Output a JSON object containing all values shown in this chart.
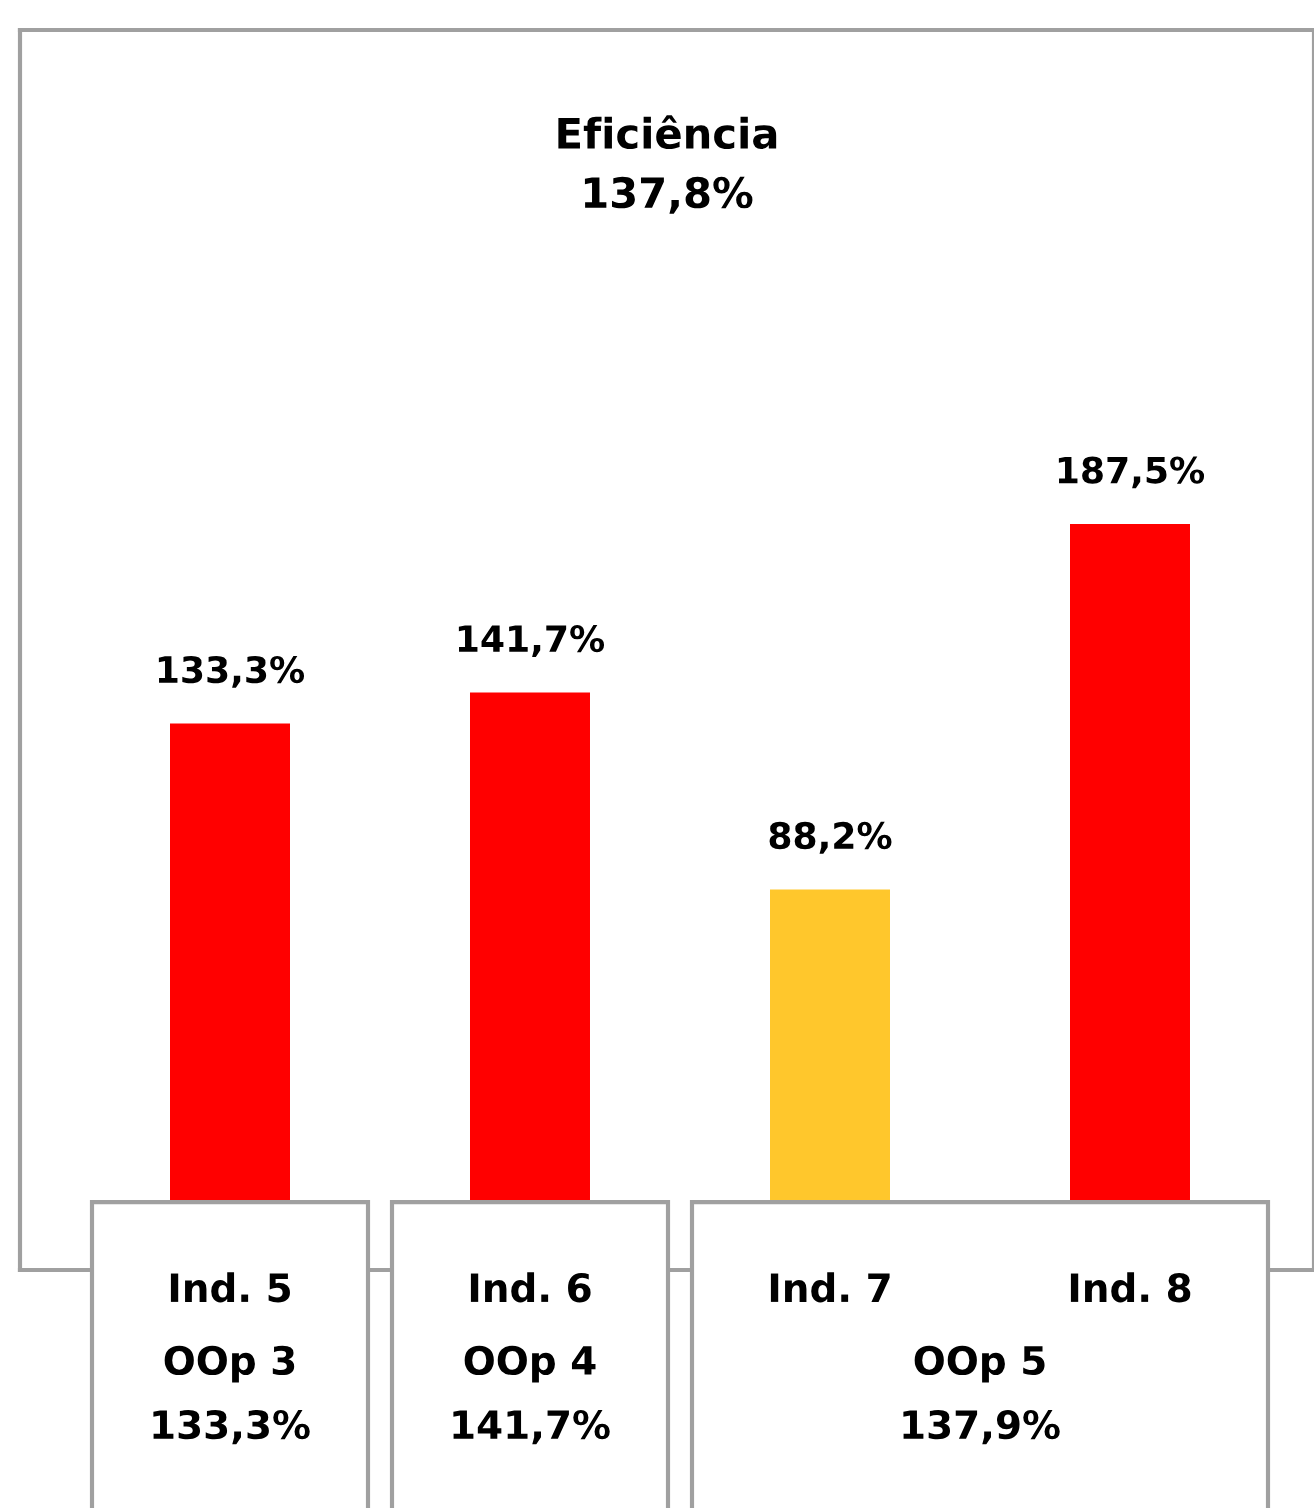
{
  "chart_data": {
    "type": "bar",
    "title": "Eficiência\n137,8%",
    "categories": [
      "Ind. 5",
      "Ind. 6",
      "Ind. 7",
      "Ind. 8"
    ],
    "values": [
      133.3,
      141.7,
      88.2,
      187.5
    ],
    "colors": [
      "#ff0000",
      "#ff0000",
      "#ffc72c",
      "#ff0000"
    ],
    "value_labels": [
      "133,3%",
      "141,7%",
      "88,2%",
      "187,5%"
    ],
    "annotations": [
      "OOp 3\n133,3%",
      "OOp 4\n141,7%",
      "OOp 5\n137,9%"
    ]
  }
}
